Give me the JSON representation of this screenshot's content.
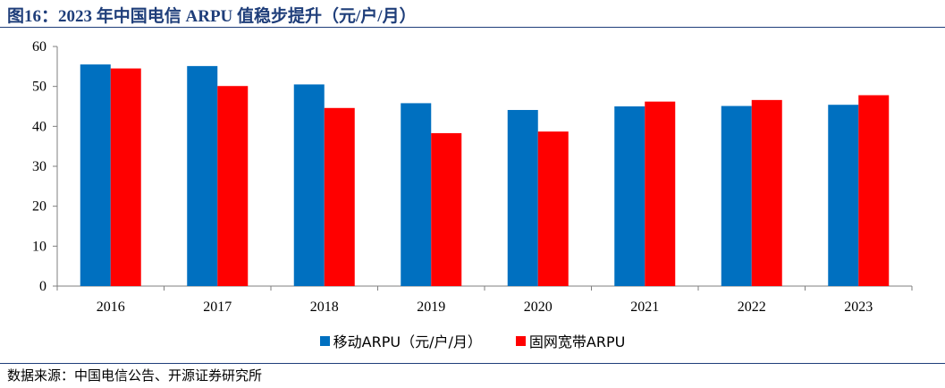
{
  "header": {
    "title": "图16：2023 年中国电信 ARPU 值稳步提升（元/户/月）"
  },
  "footer": {
    "source": "数据来源：中国电信公告、开源证券研究所"
  },
  "chart_data": {
    "type": "bar",
    "title": "",
    "xlabel": "",
    "ylabel": "",
    "ylim": [
      0,
      60
    ],
    "yticks": [
      0,
      10,
      20,
      30,
      40,
      50,
      60
    ],
    "grid": false,
    "legend_position": "bottom",
    "categories": [
      "2016",
      "2017",
      "2018",
      "2019",
      "2020",
      "2021",
      "2022",
      "2023"
    ],
    "series": [
      {
        "name": "移动ARPU（元/户/月）",
        "color": "#0070c0",
        "values": [
          55.5,
          55.1,
          50.5,
          45.8,
          44.1,
          45.0,
          45.1,
          45.4
        ]
      },
      {
        "name": "固网宽带ARPU",
        "color": "#ff0000",
        "values": [
          54.5,
          50.1,
          44.6,
          38.3,
          38.7,
          46.2,
          46.6,
          47.8
        ]
      }
    ]
  }
}
